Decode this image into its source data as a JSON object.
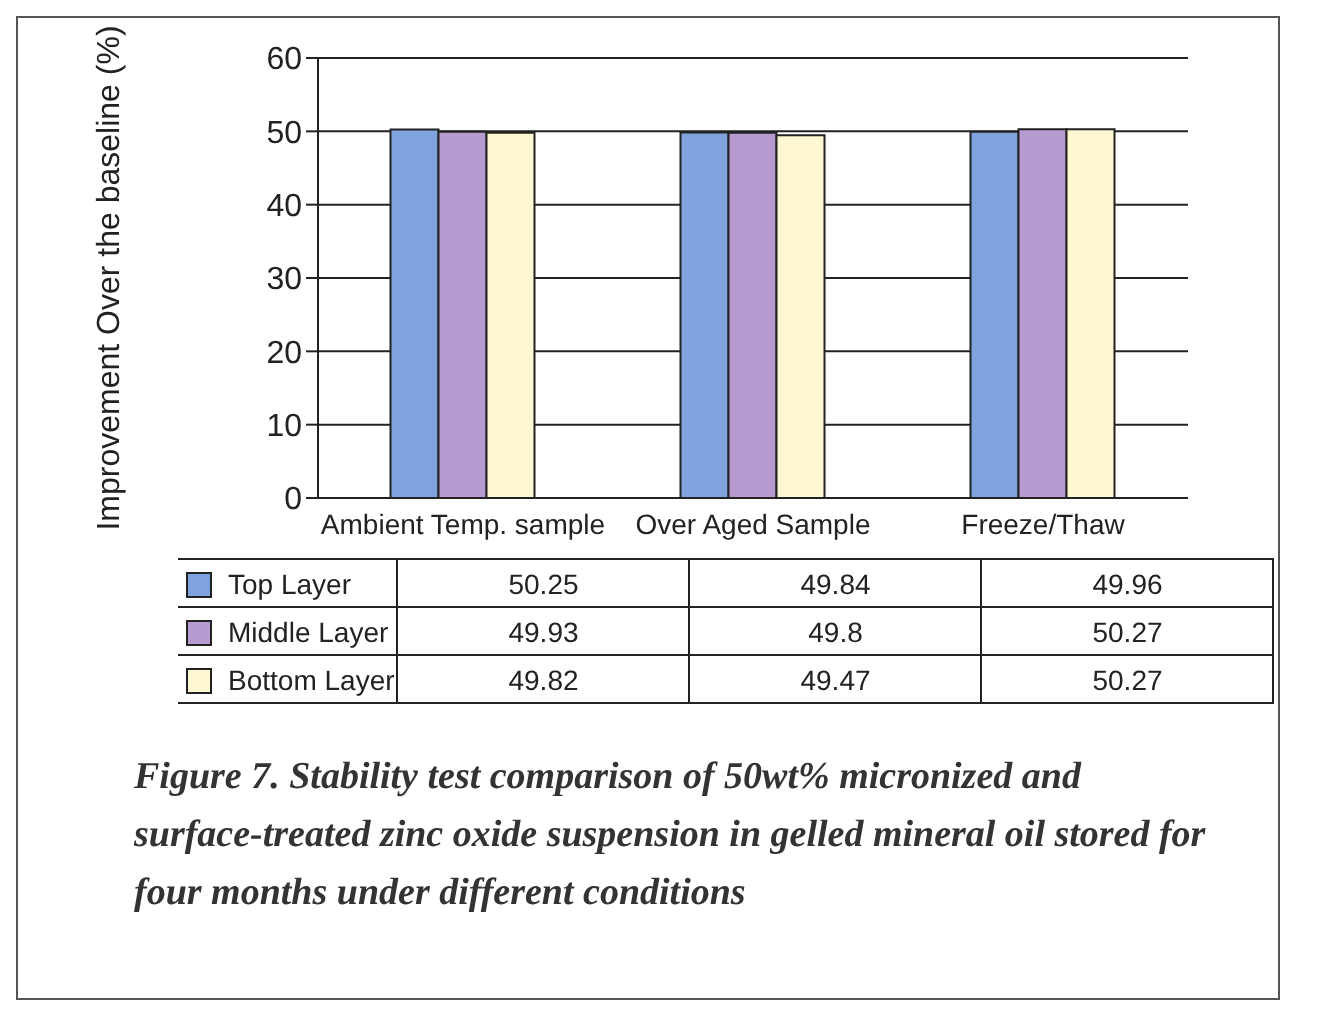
{
  "chart_data": {
    "type": "bar",
    "ylabel": "Improvement Over the baseline (%)",
    "categories": [
      "Ambient Temp. sample",
      "Over Aged Sample",
      "Freeze/Thaw"
    ],
    "series": [
      {
        "name": "Top Layer",
        "color": "#7fa3dc",
        "values": [
          50.25,
          49.84,
          49.96
        ]
      },
      {
        "name": "Middle Layer",
        "color": "#b79ad0",
        "values": [
          49.93,
          49.8,
          50.27
        ]
      },
      {
        "name": "Bottom Layer",
        "color": "#fdf8d2",
        "values": [
          49.82,
          49.47,
          50.27
        ]
      }
    ],
    "ylim": [
      0,
      60
    ],
    "yticks": [
      0,
      10,
      20,
      30,
      40,
      50,
      60
    ],
    "grid": "y",
    "legend": "bottom",
    "data_labels": true,
    "annotations": [
      "Figure 7. Stability test comparison of 50wt% micronized and surface-treated zinc oxide suspension in gelled mineral oil stored for four months under different conditions"
    ]
  }
}
